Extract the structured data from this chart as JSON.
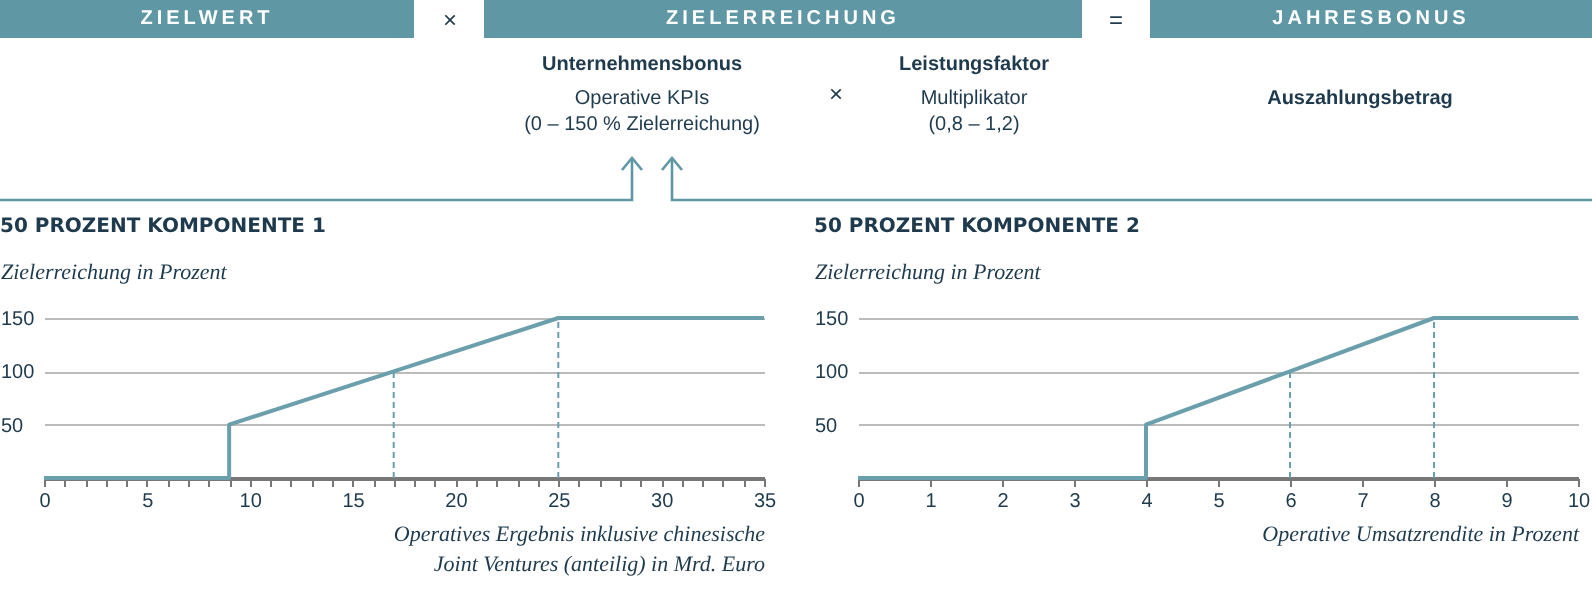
{
  "chart_data": [
    {
      "type": "other",
      "color": "#5f97a4",
      "annotations": [
        "ZIELWERT",
        "×",
        "ZIELERREICHUNG",
        "=",
        "JAHRESBONUS",
        "Unternehmensbonus",
        "Operative KPIs",
        "(0 – 150 % Zielerreichung)",
        "×",
        "Leistungsfaktor",
        "Multiplikator",
        "(0,8 – 1,2)",
        "Auszahlungsbetrag"
      ]
    },
    {
      "type": "line",
      "title": "50 PROZENT KOMPONENTE 1",
      "ylabel": "Zielerreichung in Prozent",
      "xlabel": "Operatives Ergebnis inklusive chinesische Joint Ventures (anteilig) in Mrd. Euro",
      "series": [
        {
          "color": "#6b9fac",
          "x": [
            0,
            9,
            9,
            17,
            25,
            35
          ],
          "values": [
            0,
            0,
            50,
            100,
            150,
            150
          ]
        }
      ],
      "xlim": [
        0,
        35
      ],
      "ylim": [
        0,
        150
      ],
      "xticks": [
        0,
        {
          "value": 1,
          "label": null
        },
        {
          "value": 2,
          "label": null
        },
        {
          "value": 3,
          "label": null
        },
        {
          "value": 4,
          "label": null
        },
        5,
        {
          "value": 6,
          "label": null
        },
        {
          "value": 7,
          "label": null
        },
        {
          "value": 8,
          "label": null
        },
        {
          "value": 9,
          "label": null
        },
        10,
        {
          "value": 11,
          "label": null
        },
        {
          "value": 12,
          "label": null
        },
        {
          "value": 13,
          "label": null
        },
        {
          "value": 14,
          "label": null
        },
        15,
        {
          "value": 16,
          "label": null
        },
        {
          "value": 17,
          "label": null
        },
        {
          "value": 18,
          "label": null
        },
        {
          "value": 19,
          "label": null
        },
        20,
        {
          "value": 21,
          "label": null
        },
        {
          "value": 22,
          "label": null
        },
        {
          "value": 23,
          "label": null
        },
        {
          "value": 24,
          "label": null
        },
        25,
        {
          "value": 26,
          "label": null
        },
        {
          "value": 27,
          "label": null
        },
        {
          "value": 28,
          "label": null
        },
        {
          "value": 29,
          "label": null
        },
        30,
        {
          "value": 31,
          "label": null
        },
        {
          "value": 32,
          "label": null
        },
        {
          "value": 33,
          "label": null
        },
        {
          "value": 34,
          "label": null
        },
        35
      ],
      "yticks": [
        50,
        100,
        150
      ],
      "grid": "y",
      "ref_lines": [
        {
          "axis": "x",
          "value": 17,
          "color": "#6b9fac",
          "line_style": "dashed"
        },
        {
          "axis": "x",
          "value": 25,
          "color": "#6b9fac",
          "line_style": "dashed"
        }
      ]
    },
    {
      "type": "line",
      "title": "50 PROZENT KOMPONENTE 2",
      "ylabel": "Zielerreichung in Prozent",
      "xlabel": "Operative Umsatzrendite in Prozent",
      "series": [
        {
          "color": "#6b9fac",
          "x": [
            0,
            4,
            4,
            6,
            8,
            10
          ],
          "values": [
            0,
            0,
            50,
            100,
            150,
            150
          ]
        }
      ],
      "xlim": [
        0,
        10
      ],
      "ylim": [
        0,
        150
      ],
      "xticks": [
        0,
        1,
        2,
        3,
        4,
        5,
        6,
        7,
        8,
        9,
        10
      ],
      "yticks": [
        50,
        100,
        150
      ],
      "grid": "y",
      "ref_lines": [
        {
          "axis": "x",
          "value": 6,
          "color": "#6b9fac",
          "line_style": "dashed"
        },
        {
          "axis": "x",
          "value": 8,
          "color": "#6b9fac",
          "line_style": "dashed"
        }
      ]
    }
  ]
}
